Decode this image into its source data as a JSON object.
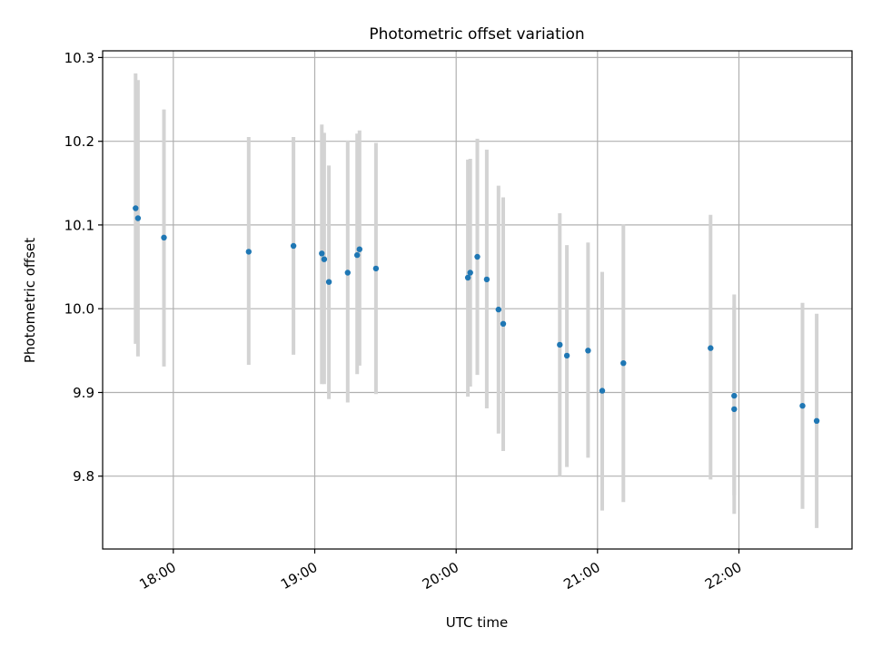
{
  "chart_data": {
    "type": "scatter",
    "title": "Photometric offset variation",
    "xlabel": "UTC time",
    "ylabel": "Photometric offset",
    "x_tick_labels": [
      "18:00",
      "19:00",
      "20:00",
      "21:00",
      "22:00"
    ],
    "x_ticks": [
      "18:00",
      "19:00",
      "20:00",
      "21:00",
      "22:00"
    ],
    "y_ticks": [
      9.8,
      9.9,
      10.0,
      10.1,
      10.2,
      10.3
    ],
    "y_tick_labels": [
      "9.8",
      "9.9",
      "10.0",
      "10.1",
      "10.2",
      "10.3"
    ],
    "xlim": [
      "17:30",
      "22:48"
    ],
    "ylim": [
      9.713,
      10.308
    ],
    "grid": true,
    "colors": {
      "point": "#1f77b4",
      "errorbar": "#d3d3d3",
      "grid": "#b0b0b0"
    },
    "series": [
      {
        "x": [
          "17:44",
          "17:45",
          "17:56",
          "18:32",
          "18:51",
          "19:03",
          "19:04",
          "19:06",
          "19:14",
          "19:18",
          "19:19",
          "19:26",
          "20:05",
          "20:06",
          "20:09",
          "20:13",
          "20:18",
          "20:20",
          "20:44",
          "20:47",
          "20:56",
          "21:02",
          "21:11",
          "21:48",
          "21:58",
          "21:58",
          "22:27",
          "22:33"
        ],
        "y": [
          10.12,
          10.108,
          10.085,
          10.068,
          10.075,
          10.066,
          10.059,
          10.032,
          10.043,
          10.064,
          10.071,
          10.048,
          10.037,
          10.043,
          10.062,
          10.035,
          9.999,
          9.982,
          9.957,
          9.944,
          9.95,
          9.902,
          9.935,
          9.953,
          9.88,
          9.896,
          9.884,
          9.866
        ],
        "yerr_low": [
          9.958,
          9.943,
          9.931,
          9.933,
          9.945,
          9.91,
          9.91,
          9.892,
          9.888,
          9.922,
          9.932,
          9.898,
          9.895,
          9.907,
          9.921,
          9.881,
          9.851,
          9.83,
          9.8,
          9.811,
          9.822,
          9.759,
          9.769,
          9.796,
          9.755,
          9.777,
          9.761,
          9.738
        ],
        "yerr_high": [
          10.281,
          10.273,
          10.238,
          10.205,
          10.205,
          10.22,
          10.21,
          10.171,
          10.201,
          10.209,
          10.213,
          10.198,
          10.178,
          10.179,
          10.203,
          10.19,
          10.147,
          10.133,
          10.114,
          10.076,
          10.079,
          10.044,
          10.101,
          10.112,
          10.003,
          10.017,
          10.007,
          9.994
        ]
      }
    ]
  }
}
